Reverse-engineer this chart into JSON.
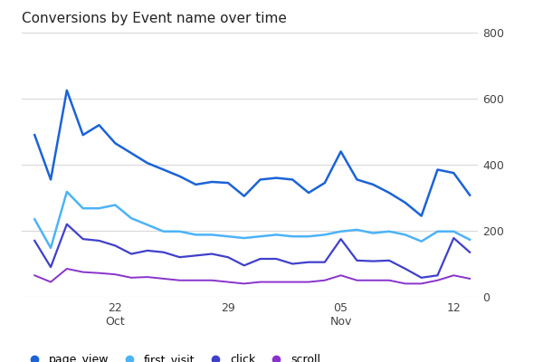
{
  "title": "Conversions by Event name over time",
  "title_fontsize": 11,
  "background_color": "#ffffff",
  "grid_color": "#d9d9d9",
  "ylim": [
    0,
    800
  ],
  "yticks": [
    0,
    200,
    400,
    600,
    800
  ],
  "xtick_positions": [
    5,
    12,
    19,
    26
  ],
  "xtick_labels_line1": [
    "22",
    "29",
    "05",
    "12"
  ],
  "xtick_labels_line2": [
    "Oct",
    "",
    "Nov",
    ""
  ],
  "series": [
    {
      "name": "page_view",
      "color": "#1b63d8",
      "linewidth": 1.8,
      "values": [
        490,
        355,
        625,
        490,
        520,
        465,
        435,
        405,
        385,
        365,
        340,
        348,
        345,
        305,
        355,
        360,
        355,
        315,
        345,
        440,
        355,
        340,
        315,
        285,
        245,
        385,
        375,
        308
      ]
    },
    {
      "name": "first_visit",
      "color": "#4db3f7",
      "linewidth": 1.8,
      "values": [
        235,
        148,
        318,
        268,
        268,
        278,
        238,
        218,
        198,
        198,
        188,
        188,
        183,
        178,
        183,
        188,
        183,
        183,
        188,
        198,
        203,
        193,
        198,
        188,
        168,
        198,
        198,
        173
      ]
    },
    {
      "name": "click",
      "color": "#4040cc",
      "linewidth": 1.6,
      "values": [
        170,
        90,
        220,
        175,
        170,
        155,
        130,
        140,
        135,
        120,
        125,
        130,
        120,
        95,
        115,
        115,
        100,
        105,
        105,
        175,
        110,
        108,
        110,
        85,
        58,
        65,
        178,
        135
      ]
    },
    {
      "name": "scroll",
      "color": "#8833cc",
      "linewidth": 1.4,
      "values": [
        65,
        45,
        85,
        75,
        72,
        68,
        58,
        60,
        55,
        50,
        50,
        50,
        45,
        40,
        45,
        45,
        45,
        45,
        50,
        65,
        50,
        50,
        50,
        40,
        40,
        50,
        65,
        55
      ]
    }
  ],
  "legend_labels": [
    "page_view",
    "first_visit",
    "click",
    "scroll"
  ],
  "legend_colors": [
    "#1b63d8",
    "#4db3f7",
    "#4040cc",
    "#8833cc"
  ]
}
